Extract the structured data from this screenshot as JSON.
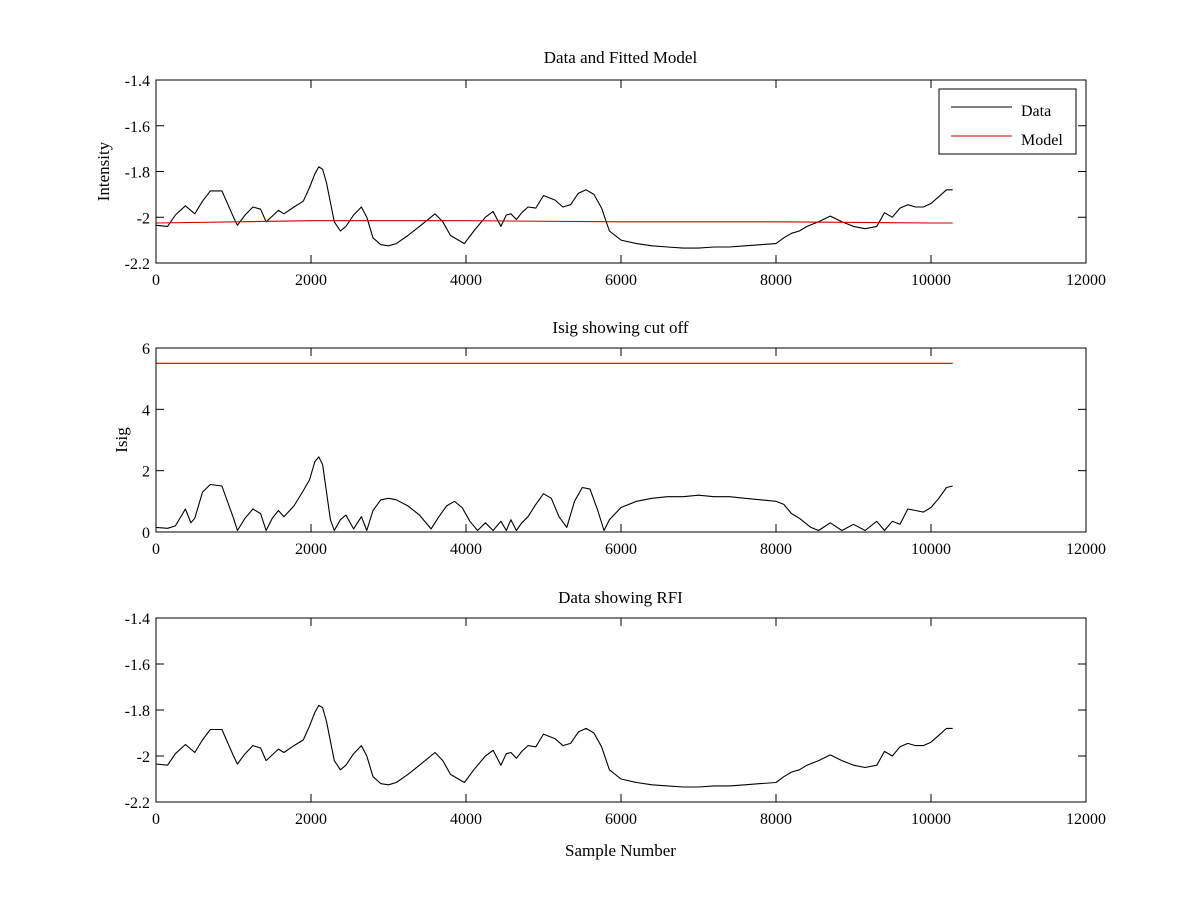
{
  "figure": {
    "background": "#ffffff",
    "line_colors": {
      "data": "#000000",
      "model": "#cc0000"
    }
  },
  "chart_data": [
    {
      "type": "line",
      "title": "Data and Fitted Model",
      "xlabel": "",
      "ylabel": "Intensity",
      "xlim": [
        0,
        12000
      ],
      "ylim": [
        -2.2,
        -1.4
      ],
      "xticks": [
        0,
        2000,
        4000,
        6000,
        8000,
        10000,
        12000
      ],
      "yticks": [
        -2.2,
        -2,
        -1.8,
        -1.6,
        -1.4
      ],
      "xtick_labels": [
        "0",
        "2000",
        "4000",
        "6000",
        "8000",
        "10000",
        "12000"
      ],
      "ytick_labels": [
        "-2.2",
        "-2",
        "-1.8",
        "-1.6",
        "-1.4"
      ],
      "legend": {
        "position": "top-right",
        "entries": [
          "Data",
          "Model"
        ]
      },
      "series": [
        {
          "name": "Data",
          "color": "#000000",
          "x": [
            0,
            150,
            250,
            380,
            500,
            600,
            700,
            850,
            1000,
            1050,
            1150,
            1250,
            1350,
            1420,
            1500,
            1580,
            1650,
            1780,
            1900,
            1980,
            2050,
            2100,
            2150,
            2200,
            2300,
            2380,
            2450,
            2550,
            2650,
            2720,
            2800,
            2900,
            3000,
            3100,
            3250,
            3400,
            3600,
            3700,
            3800,
            3980,
            4100,
            4250,
            4350,
            4450,
            4520,
            4580,
            4650,
            4720,
            4800,
            4900,
            5000,
            5150,
            5250,
            5350,
            5450,
            5550,
            5650,
            5750,
            5850,
            6000,
            6200,
            6400,
            6600,
            6800,
            7000,
            7200,
            7400,
            7600,
            7800,
            8000,
            8100,
            8200,
            8300,
            8400,
            8550,
            8700,
            8850,
            9000,
            9150,
            9300,
            9400,
            9500,
            9600,
            9700,
            9800,
            9900,
            10000,
            10100,
            10200,
            10280
          ],
          "y": [
            -2.035,
            -2.04,
            -1.99,
            -1.95,
            -1.985,
            -1.93,
            -1.885,
            -1.885,
            -2.0,
            -2.035,
            -1.99,
            -1.955,
            -1.965,
            -2.02,
            -1.995,
            -1.97,
            -1.985,
            -1.955,
            -1.93,
            -1.87,
            -1.81,
            -1.78,
            -1.79,
            -1.85,
            -2.02,
            -2.06,
            -2.04,
            -1.99,
            -1.955,
            -2.0,
            -2.09,
            -2.12,
            -2.125,
            -2.115,
            -2.08,
            -2.04,
            -1.985,
            -2.02,
            -2.08,
            -2.115,
            -2.06,
            -2.0,
            -1.975,
            -2.04,
            -1.99,
            -1.985,
            -2.01,
            -1.98,
            -1.955,
            -1.96,
            -1.905,
            -1.925,
            -1.955,
            -1.945,
            -1.895,
            -1.88,
            -1.9,
            -1.96,
            -2.06,
            -2.1,
            -2.115,
            -2.125,
            -2.13,
            -2.135,
            -2.135,
            -2.13,
            -2.13,
            -2.125,
            -2.12,
            -2.115,
            -2.09,
            -2.07,
            -2.06,
            -2.04,
            -2.02,
            -1.995,
            -2.02,
            -2.04,
            -2.05,
            -2.04,
            -1.98,
            -2.0,
            -1.96,
            -1.945,
            -1.955,
            -1.955,
            -1.94,
            -1.91,
            -1.88,
            -1.88
          ]
        },
        {
          "name": "Model",
          "color": "#cc0000",
          "x": [
            0,
            2000,
            4000,
            6000,
            8000,
            10000,
            10280
          ],
          "y": [
            -2.025,
            -2.015,
            -2.015,
            -2.02,
            -2.02,
            -2.025,
            -2.025
          ]
        }
      ]
    },
    {
      "type": "line",
      "title": "Isig showing cut off",
      "xlabel": "",
      "ylabel": "Isig",
      "xlim": [
        0,
        12000
      ],
      "ylim": [
        0,
        6
      ],
      "xticks": [
        0,
        2000,
        4000,
        6000,
        8000,
        10000,
        12000
      ],
      "yticks": [
        0,
        2,
        4,
        6
      ],
      "xtick_labels": [
        "0",
        "2000",
        "4000",
        "6000",
        "8000",
        "10000",
        "12000"
      ],
      "ytick_labels": [
        "0",
        "2",
        "4",
        "6"
      ],
      "series": [
        {
          "name": "",
          "color": "#000000",
          "x": [
            0,
            150,
            250,
            380,
            450,
            500,
            600,
            700,
            850,
            1000,
            1050,
            1150,
            1250,
            1350,
            1420,
            1500,
            1580,
            1650,
            1780,
            1900,
            1980,
            2050,
            2100,
            2150,
            2200,
            2250,
            2300,
            2380,
            2450,
            2550,
            2650,
            2720,
            2800,
            2900,
            3000,
            3100,
            3250,
            3400,
            3550,
            3650,
            3750,
            3850,
            3950,
            4050,
            4150,
            4250,
            4350,
            4450,
            4520,
            4580,
            4650,
            4720,
            4800,
            4900,
            5000,
            5100,
            5200,
            5300,
            5400,
            5500,
            5600,
            5700,
            5780,
            5850,
            6000,
            6200,
            6400,
            6600,
            6800,
            7000,
            7200,
            7400,
            7600,
            7800,
            8000,
            8100,
            8200,
            8300,
            8450,
            8550,
            8700,
            8850,
            9000,
            9150,
            9300,
            9400,
            9500,
            9600,
            9700,
            9800,
            9900,
            10000,
            10100,
            10200,
            10280
          ],
          "y": [
            0.15,
            0.12,
            0.2,
            0.75,
            0.3,
            0.45,
            1.3,
            1.55,
            1.5,
            0.45,
            0.05,
            0.45,
            0.75,
            0.6,
            0.05,
            0.45,
            0.7,
            0.5,
            0.85,
            1.35,
            1.7,
            2.3,
            2.45,
            2.2,
            1.3,
            0.4,
            0.05,
            0.4,
            0.55,
            0.1,
            0.5,
            0.05,
            0.7,
            1.05,
            1.1,
            1.05,
            0.85,
            0.55,
            0.1,
            0.5,
            0.85,
            1.0,
            0.8,
            0.35,
            0.05,
            0.3,
            0.05,
            0.35,
            0.05,
            0.4,
            0.05,
            0.3,
            0.5,
            0.9,
            1.25,
            1.1,
            0.5,
            0.15,
            1.0,
            1.45,
            1.4,
            0.7,
            0.05,
            0.4,
            0.8,
            1.0,
            1.1,
            1.15,
            1.15,
            1.2,
            1.15,
            1.15,
            1.1,
            1.05,
            1.0,
            0.9,
            0.6,
            0.45,
            0.15,
            0.05,
            0.3,
            0.05,
            0.25,
            0.05,
            0.35,
            0.05,
            0.35,
            0.25,
            0.75,
            0.7,
            0.65,
            0.8,
            1.1,
            1.45,
            1.5
          ]
        },
        {
          "name": "",
          "color": "#cc0000",
          "x": [
            0,
            10280
          ],
          "y": [
            5.5,
            5.5
          ]
        }
      ]
    },
    {
      "type": "line",
      "title": "Data showing RFI",
      "xlabel": "Sample Number",
      "ylabel": "",
      "xlim": [
        0,
        12000
      ],
      "ylim": [
        -2.2,
        -1.4
      ],
      "xticks": [
        0,
        2000,
        4000,
        6000,
        8000,
        10000,
        12000
      ],
      "yticks": [
        -2.2,
        -2,
        -1.8,
        -1.6,
        -1.4
      ],
      "xtick_labels": [
        "0",
        "2000",
        "4000",
        "6000",
        "8000",
        "10000",
        "12000"
      ],
      "ytick_labels": [
        "-2.2",
        "-2",
        "-1.8",
        "-1.6",
        "-1.4"
      ],
      "series": [
        {
          "name": "",
          "color": "#000000",
          "x": [
            0,
            150,
            250,
            380,
            500,
            600,
            700,
            850,
            1000,
            1050,
            1150,
            1250,
            1350,
            1420,
            1500,
            1580,
            1650,
            1780,
            1900,
            1980,
            2050,
            2100,
            2150,
            2200,
            2300,
            2380,
            2450,
            2550,
            2650,
            2720,
            2800,
            2900,
            3000,
            3100,
            3250,
            3400,
            3600,
            3700,
            3800,
            3980,
            4100,
            4250,
            4350,
            4450,
            4520,
            4580,
            4650,
            4720,
            4800,
            4900,
            5000,
            5150,
            5250,
            5350,
            5450,
            5550,
            5650,
            5750,
            5850,
            6000,
            6200,
            6400,
            6600,
            6800,
            7000,
            7200,
            7400,
            7600,
            7800,
            8000,
            8100,
            8200,
            8300,
            8400,
            8550,
            8700,
            8850,
            9000,
            9150,
            9300,
            9400,
            9500,
            9600,
            9700,
            9800,
            9900,
            10000,
            10100,
            10200,
            10280
          ],
          "y": [
            -2.035,
            -2.04,
            -1.99,
            -1.95,
            -1.985,
            -1.93,
            -1.885,
            -1.885,
            -2.0,
            -2.035,
            -1.99,
            -1.955,
            -1.965,
            -2.02,
            -1.995,
            -1.97,
            -1.985,
            -1.955,
            -1.93,
            -1.87,
            -1.81,
            -1.78,
            -1.79,
            -1.85,
            -2.02,
            -2.06,
            -2.04,
            -1.99,
            -1.955,
            -2.0,
            -2.09,
            -2.12,
            -2.125,
            -2.115,
            -2.08,
            -2.04,
            -1.985,
            -2.02,
            -2.08,
            -2.115,
            -2.06,
            -2.0,
            -1.975,
            -2.04,
            -1.99,
            -1.985,
            -2.01,
            -1.98,
            -1.955,
            -1.96,
            -1.905,
            -1.925,
            -1.955,
            -1.945,
            -1.895,
            -1.88,
            -1.9,
            -1.96,
            -2.06,
            -2.1,
            -2.115,
            -2.125,
            -2.13,
            -2.135,
            -2.135,
            -2.13,
            -2.13,
            -2.125,
            -2.12,
            -2.115,
            -2.09,
            -2.07,
            -2.06,
            -2.04,
            -2.02,
            -1.995,
            -2.02,
            -2.04,
            -2.05,
            -2.04,
            -1.98,
            -2.0,
            -1.96,
            -1.945,
            -1.955,
            -1.955,
            -1.94,
            -1.91,
            -1.88,
            -1.88
          ]
        }
      ]
    }
  ]
}
